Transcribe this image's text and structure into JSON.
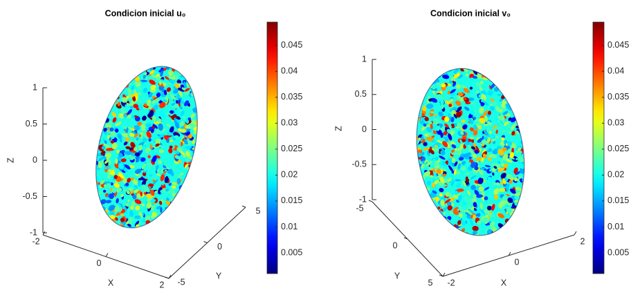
{
  "chart_data": [
    {
      "type": "surface",
      "title": "Condicion inicial u₀",
      "xlabel": "X",
      "ylabel": "Y",
      "zlabel": "Z",
      "xlim": [
        -2,
        2
      ],
      "xticks": [
        -2,
        0,
        2
      ],
      "ylim": [
        -5,
        5
      ],
      "yticks": [
        -5,
        0,
        5
      ],
      "zlim": [
        -1,
        1
      ],
      "zticks": [
        -1,
        -0.5,
        0,
        0.5,
        1
      ],
      "colormap": "jet",
      "clim": [
        0.001,
        0.0495
      ],
      "cticks": [
        0.005,
        0.01,
        0.015,
        0.02,
        0.025,
        0.03,
        0.035,
        0.04,
        0.045
      ]
    },
    {
      "type": "surface",
      "title": "Condicion inicial v₀",
      "xlabel": "X",
      "ylabel": "Y",
      "zlabel": "Z",
      "xlim": [
        -2,
        2
      ],
      "xticks": [
        -2,
        0,
        2
      ],
      "ylim": [
        -5,
        5
      ],
      "yticks": [
        -5,
        0,
        5
      ],
      "zlim": [
        -1,
        1
      ],
      "zticks": [
        -1,
        -0.5,
        0,
        0.5,
        1
      ],
      "colormap": "jet",
      "clim": [
        0.001,
        0.0495
      ],
      "cticks": [
        0.005,
        0.01,
        0.015,
        0.02,
        0.025,
        0.03,
        0.035,
        0.04,
        0.045
      ]
    }
  ]
}
